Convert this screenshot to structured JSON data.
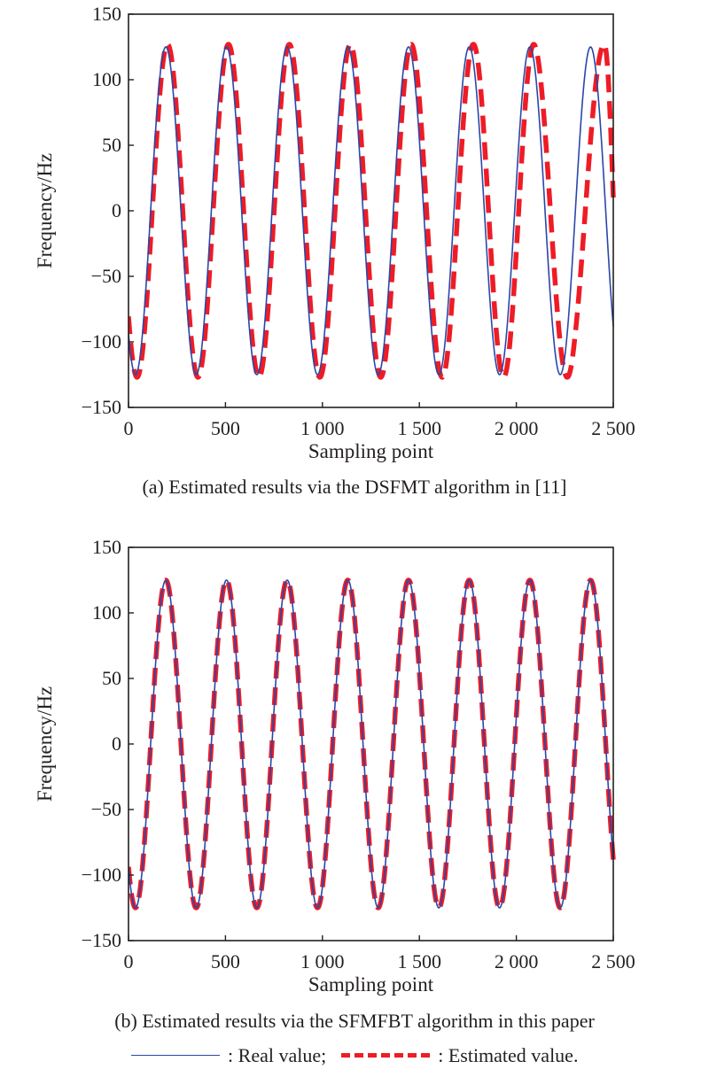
{
  "chart_data": [
    {
      "type": "line",
      "panel": "a",
      "caption": "(a) Estimated results via the DSFMT algorithm in [11]",
      "xlabel": "Sampling point",
      "ylabel": "Frequency/Hz",
      "xlim": [
        0,
        2500
      ],
      "ylim": [
        -150,
        150
      ],
      "xticks": [
        0,
        500,
        1000,
        1500,
        2000,
        2500
      ],
      "xtick_labels": [
        "0",
        "500",
        "1 000",
        "1 500",
        "2 000",
        "2 500"
      ],
      "yticks": [
        150,
        100,
        50,
        0,
        -50,
        -100,
        -150
      ],
      "ytick_labels": [
        "150",
        "100",
        "50",
        "0",
        "−50",
        "−100",
        "−150"
      ],
      "grid": false,
      "series": [
        {
          "name": "Real value",
          "style": "solid",
          "color": "#2a47a8",
          "model": {
            "amplitude": 125,
            "period": 312.9,
            "trough_at": 36
          },
          "peaks_x": [
            192,
            505,
            818,
            1131,
            1444,
            1757,
            2070,
            2383
          ],
          "peak_value": 125,
          "trough_value": -125,
          "start_value": -94,
          "end_value": -90
        },
        {
          "name": "Estimated value",
          "style": "dashed",
          "color": "#ee1c25",
          "model": {
            "amplitude": 127,
            "period": 312.9,
            "trough_at": 36,
            "lag": [
              [
                0,
                8
              ],
              [
                1500,
                14
              ],
              [
                1800,
                22
              ],
              [
                2100,
                20
              ],
              [
                2300,
                40
              ],
              [
                2454,
                71
              ],
              [
                2500,
                43
              ]
            ]
          },
          "peaks_x": [
            205,
            518,
            832,
            1145,
            1460,
            1780,
            2090,
            2454
          ],
          "peak_value": 127,
          "trough_value": -127,
          "start_value": -85,
          "end_value": -11
        }
      ]
    },
    {
      "type": "line",
      "panel": "b",
      "caption": "(b) Estimated results via the SFMFBT algorithm in this paper",
      "xlabel": "Sampling point",
      "ylabel": "Frequency/Hz",
      "xlim": [
        0,
        2500
      ],
      "ylim": [
        -150,
        150
      ],
      "xticks": [
        0,
        500,
        1000,
        1500,
        2000,
        2500
      ],
      "xtick_labels": [
        "0",
        "500",
        "1 000",
        "1 500",
        "2 000",
        "2 500"
      ],
      "yticks": [
        150,
        100,
        50,
        0,
        -50,
        -100,
        -150
      ],
      "ytick_labels": [
        "150",
        "100",
        "50",
        "0",
        "−50",
        "−100",
        "−150"
      ],
      "grid": false,
      "series": [
        {
          "name": "Real value",
          "style": "solid",
          "color": "#2a47a8",
          "model": {
            "amplitude": 125,
            "period": 312.9,
            "trough_at": 36
          },
          "peaks_x": [
            192,
            505,
            818,
            1131,
            1444,
            1757,
            2070,
            2383
          ],
          "peak_value": 125,
          "trough_value": -125,
          "start_value": -94,
          "end_value": -90
        },
        {
          "name": "Estimated value",
          "style": "dashed",
          "color": "#ee1c25",
          "model": {
            "amplitude": 125,
            "period": 312.9,
            "trough_at": 36
          },
          "peaks_x": [
            192,
            505,
            818,
            1131,
            1444,
            1757,
            2070,
            2383
          ],
          "peak_value": 125,
          "trough_value": -125,
          "start_value": -94,
          "end_value": -90
        }
      ]
    }
  ],
  "legend": {
    "position": "bottom-center",
    "real_label": ": Real value;",
    "estimated_label": ": Estimated value.",
    "real_color": "#2a47a8",
    "estimated_color": "#ee1c25"
  }
}
